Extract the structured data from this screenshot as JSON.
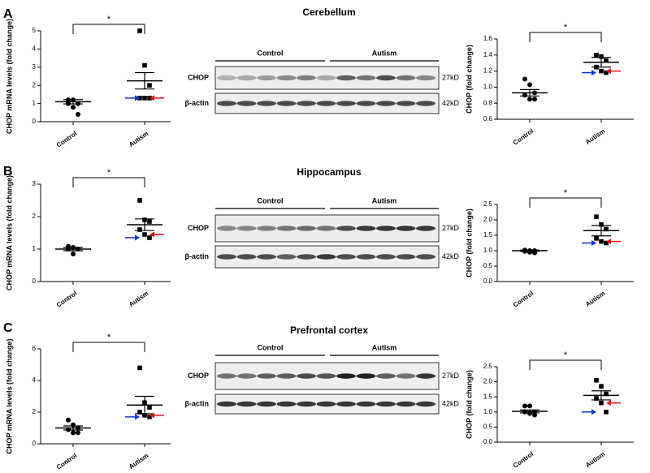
{
  "panels": [
    {
      "letter": "A",
      "title": "Cerebellum",
      "groups": [
        "Control",
        "Autism"
      ],
      "rows": [
        {
          "label": "CHOP",
          "size": "27kD"
        },
        {
          "label": "β-actin",
          "size": "42kD"
        }
      ]
    },
    {
      "letter": "B",
      "title": "Hippocampus",
      "groups": [
        "Control",
        "Autism"
      ],
      "rows": [
        {
          "label": "CHOP",
          "size": "27kD"
        },
        {
          "label": "β-actin",
          "size": "42kD"
        }
      ]
    },
    {
      "letter": "C",
      "title": "Prefrontal cortex",
      "groups": [
        "Control",
        "Autism"
      ],
      "rows": [
        {
          "label": "CHOP",
          "size": "27kD"
        },
        {
          "label": "β-actin",
          "size": "42kD"
        }
      ]
    }
  ],
  "chart_data": [
    {
      "type": "dot-plot",
      "ylabel": "CHOP mRNA levels (fold change)",
      "categories": [
        "Control",
        "Autism"
      ],
      "points": [
        [
          1.2,
          1.2,
          1.0,
          1.0,
          0.8,
          0.4
        ],
        [
          5.0,
          3.1,
          2.0,
          1.3,
          1.3,
          1.3
        ]
      ],
      "mean": [
        1.1,
        2.25
      ],
      "sem": [
        0.12,
        0.45
      ],
      "significance": "*",
      "ylim": [
        0,
        5
      ],
      "yticks": [
        0,
        1,
        2,
        3,
        4,
        5
      ]
    },
    {
      "type": "dot-plot",
      "ylabel": "CHOP (fold change)",
      "categories": [
        "Control",
        "Autism"
      ],
      "points": [
        [
          1.1,
          1.03,
          0.93,
          0.9,
          0.85,
          0.85
        ],
        [
          1.4,
          1.38,
          1.33,
          1.25,
          1.2,
          1.18
        ]
      ],
      "mean": [
        0.93,
        1.31
      ],
      "sem": [
        0.04,
        0.06
      ],
      "significance": "*",
      "ylim": [
        0.6,
        1.6
      ],
      "yticks": [
        0.6,
        0.8,
        {
          "value": 1,
          "label": "1.0"
        },
        1.2,
        1.4,
        1.6
      ]
    },
    {
      "type": "dot-plot",
      "ylabel": "CHOP mRNA levels (fold change)",
      "categories": [
        "Control",
        "Autism"
      ],
      "points": [
        [
          1.08,
          1.05,
          1.0,
          1.0,
          0.85
        ],
        [
          2.5,
          1.9,
          1.85,
          1.6,
          1.45,
          1.35
        ]
      ],
      "mean": [
        1.0,
        1.75
      ],
      "sem": [
        0.05,
        0.18
      ],
      "significance": "*",
      "ylim": [
        0,
        3
      ],
      "yticks": [
        0,
        1,
        2,
        3
      ]
    },
    {
      "type": "dot-plot",
      "ylabel": "CHOP (fold change)",
      "categories": [
        "Control",
        "Autism"
      ],
      "points": [
        [
          1.02,
          1.0,
          1.0,
          0.98,
          0.95,
          0.93
        ],
        [
          2.1,
          1.85,
          1.7,
          1.4,
          1.3,
          1.25
        ]
      ],
      "mean": [
        1.0,
        1.65
      ],
      "sem": [
        0.02,
        0.17
      ],
      "significance": "*",
      "ylim": [
        0,
        2.5
      ],
      "yticks": [
        {
          "value": 0,
          "label": "0.0"
        },
        0.5,
        {
          "value": 1,
          "label": "1.0"
        },
        1.5,
        {
          "value": 2,
          "label": "2.0"
        },
        2.5
      ]
    },
    {
      "type": "dot-plot",
      "ylabel": "CHOP mRNA levels (fold change)",
      "categories": [
        "Control",
        "Autism"
      ],
      "points": [
        [
          1.5,
          1.2,
          1.0,
          0.9,
          0.7,
          0.7
        ],
        [
          4.8,
          2.6,
          2.3,
          2.0,
          1.8,
          1.7
        ]
      ],
      "mean": [
        1.0,
        2.45
      ],
      "sem": [
        0.13,
        0.55
      ],
      "significance": "*",
      "ylim": [
        0,
        6
      ],
      "yticks": [
        0,
        2,
        4,
        6
      ]
    },
    {
      "type": "dot-plot",
      "ylabel": "CHOP (fold change)",
      "categories": [
        "Control",
        "Autism"
      ],
      "points": [
        [
          1.2,
          1.2,
          1.0,
          1.0,
          0.95,
          0.9
        ],
        [
          2.05,
          1.85,
          1.6,
          1.45,
          1.3,
          1.0
        ]
      ],
      "mean": [
        1.02,
        1.55
      ],
      "sem": [
        0.05,
        0.15
      ],
      "significance": "*",
      "ylim": [
        0,
        2.5
      ],
      "yticks": [
        {
          "value": 0,
          "label": "0.0"
        },
        0.5,
        {
          "value": 1,
          "label": "1.0"
        },
        1.5,
        {
          "value": 2,
          "label": "2.0"
        },
        2.5
      ]
    }
  ]
}
